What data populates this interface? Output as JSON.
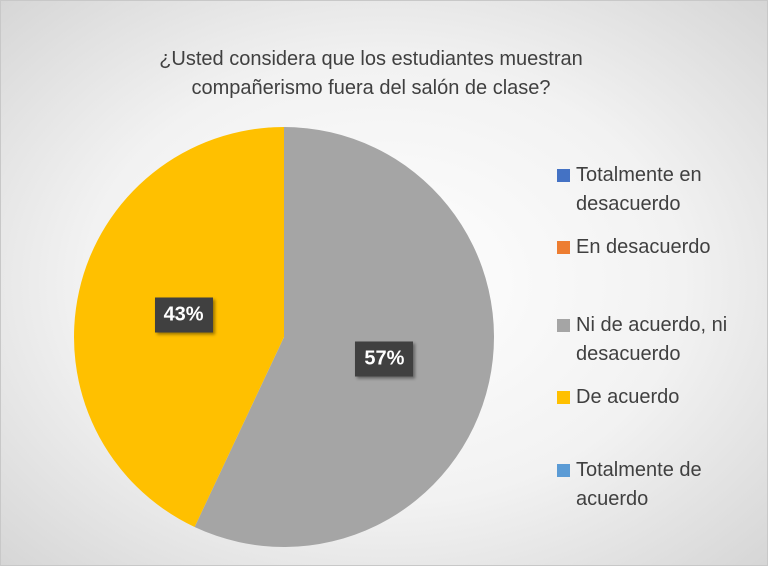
{
  "chart_data": {
    "type": "pie",
    "title": "¿Usted considera que los estudiantes muestran compañerismo fuera del salón de clase?",
    "categories": [
      "Totalmente en desacuerdo",
      "En desacuerdo",
      "Ni de acuerdo, ni desacuerdo",
      "De acuerdo",
      "Totalmente de acuerdo"
    ],
    "values": [
      0,
      0,
      57,
      43,
      0
    ],
    "value_labels": [
      null,
      null,
      "57%",
      "43%",
      null
    ],
    "colors": [
      "#4472c4",
      "#ed7d31",
      "#a5a5a5",
      "#ffc000",
      "#5b9bd5"
    ],
    "legend": "right"
  }
}
